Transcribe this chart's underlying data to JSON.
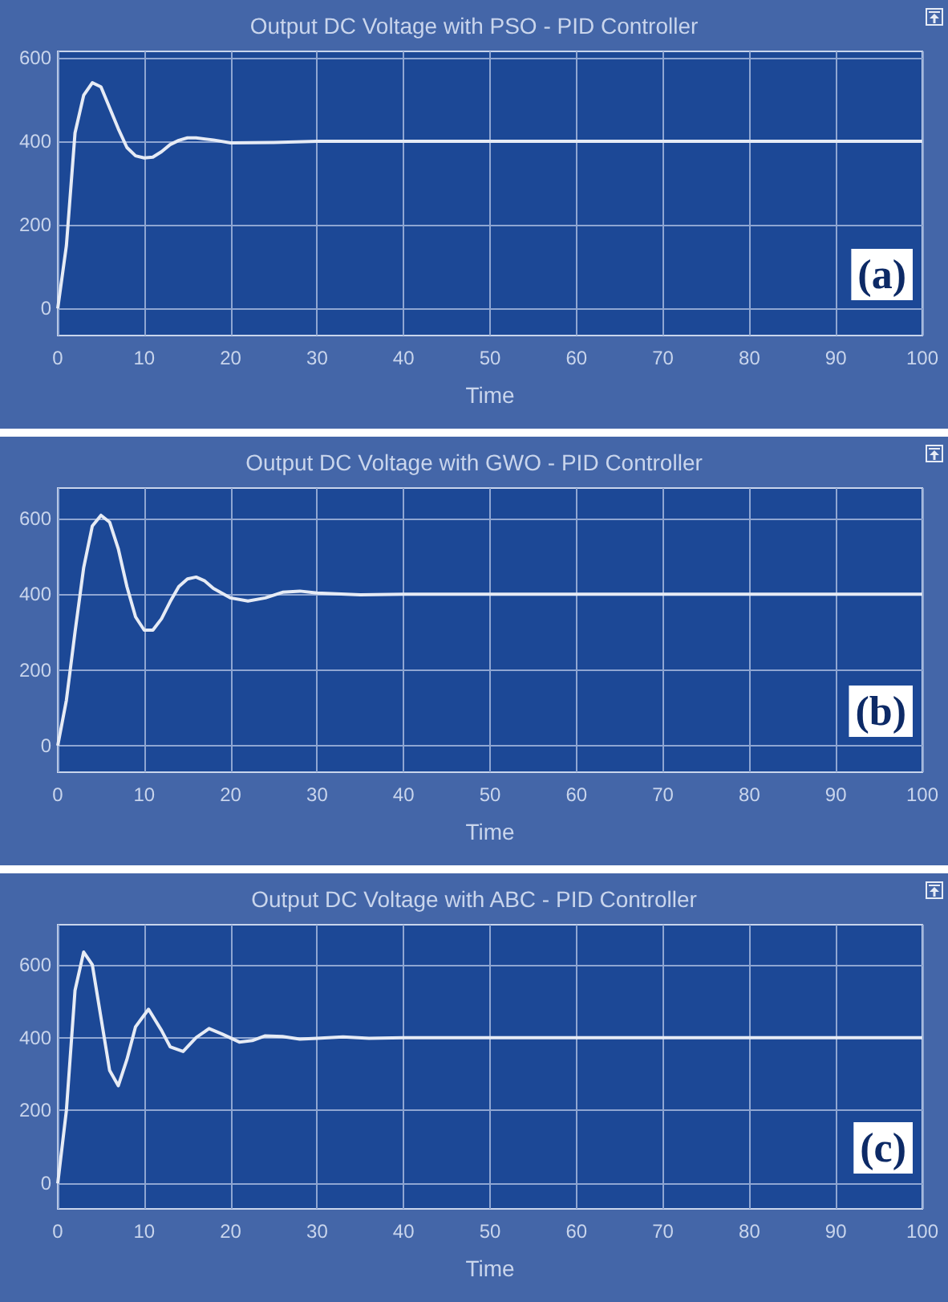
{
  "chart_data": [
    {
      "type": "line",
      "title": "Output DC Voltage with PSO - PID Controller",
      "xlabel": "Time",
      "color": "#e6ebf5",
      "grid": true,
      "xlim": [
        0,
        100
      ],
      "ylim": [
        -65,
        615
      ],
      "xticks": [
        0,
        10,
        20,
        30,
        40,
        50,
        60,
        70,
        80,
        90,
        100
      ],
      "yticks": [
        0,
        200,
        400,
        600
      ],
      "annotations": [
        "(a)"
      ],
      "x": [
        0,
        1,
        2,
        3,
        4,
        5,
        6,
        7,
        8,
        9,
        10,
        11,
        12,
        13,
        14,
        15,
        16,
        18,
        20,
        25,
        30,
        100
      ],
      "values": [
        0,
        150,
        420,
        510,
        540,
        530,
        480,
        430,
        385,
        365,
        360,
        362,
        375,
        392,
        402,
        408,
        408,
        403,
        396,
        397,
        400,
        400
      ]
    },
    {
      "type": "line",
      "title": "Output DC Voltage with GWO - PID Controller",
      "xlabel": "Time",
      "color": "#e6ebf5",
      "grid": true,
      "xlim": [
        0,
        100
      ],
      "ylim": [
        -70,
        680
      ],
      "xticks": [
        0,
        10,
        20,
        30,
        40,
        50,
        60,
        70,
        80,
        90,
        100
      ],
      "yticks": [
        0,
        200,
        400,
        600
      ],
      "annotations": [
        "(b)"
      ],
      "x": [
        0,
        1,
        2,
        3,
        4,
        5,
        6,
        7,
        8,
        9,
        10,
        11,
        12,
        13,
        14,
        15,
        16,
        17,
        18,
        20,
        22,
        24,
        26,
        28,
        30,
        35,
        40,
        100
      ],
      "values": [
        0,
        120,
        300,
        470,
        580,
        608,
        590,
        520,
        420,
        340,
        305,
        305,
        335,
        380,
        420,
        440,
        445,
        435,
        415,
        390,
        382,
        390,
        405,
        408,
        403,
        398,
        400,
        400
      ]
    },
    {
      "type": "line",
      "title": "Output DC Voltage with ABC - PID Controller",
      "xlabel": "Time",
      "color": "#e6ebf5",
      "grid": true,
      "xlim": [
        0,
        100
      ],
      "ylim": [
        -70,
        710
      ],
      "xticks": [
        0,
        10,
        20,
        30,
        40,
        50,
        60,
        70,
        80,
        90,
        100
      ],
      "yticks": [
        0,
        200,
        400,
        600
      ],
      "annotations": [
        "(c)"
      ],
      "x": [
        0,
        1,
        2,
        3,
        4,
        6,
        7,
        8,
        9,
        10.5,
        12,
        13,
        14.5,
        16,
        17.5,
        19,
        21,
        22.5,
        24,
        26,
        28,
        30,
        33,
        36,
        40,
        100
      ],
      "values": [
        0,
        200,
        530,
        635,
        600,
        310,
        268,
        340,
        430,
        478,
        420,
        375,
        362,
        400,
        425,
        410,
        388,
        392,
        405,
        403,
        396,
        398,
        402,
        398,
        400,
        400
      ]
    }
  ]
}
